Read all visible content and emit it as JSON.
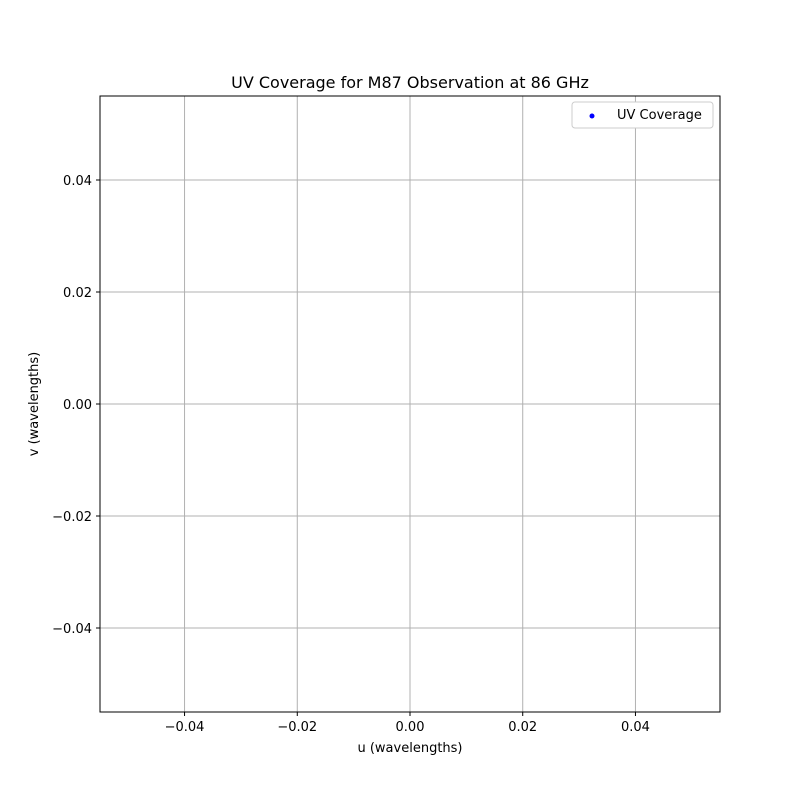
{
  "chart_data": {
    "type": "scatter",
    "title": "UV Coverage for M87 Observation at 86 GHz",
    "xlabel": "u (wavelengths)",
    "ylabel": "v (wavelengths)",
    "xlim": [
      -0.055,
      0.055
    ],
    "ylim": [
      -0.055,
      0.055
    ],
    "xticks": [
      -0.04,
      -0.02,
      0.0,
      0.02,
      0.04
    ],
    "yticks": [
      -0.04,
      -0.02,
      0.0,
      0.02,
      0.04
    ],
    "xtick_labels": [
      "−0.04",
      "−0.02",
      "0.00",
      "0.02",
      "0.04"
    ],
    "ytick_labels": [
      "−0.04",
      "−0.02",
      "0.00",
      "0.02",
      "0.04"
    ],
    "grid": true,
    "legend_position": "top-right",
    "series": [
      {
        "name": "UV Coverage",
        "color": "#0000ff",
        "x": [],
        "y": []
      }
    ]
  }
}
